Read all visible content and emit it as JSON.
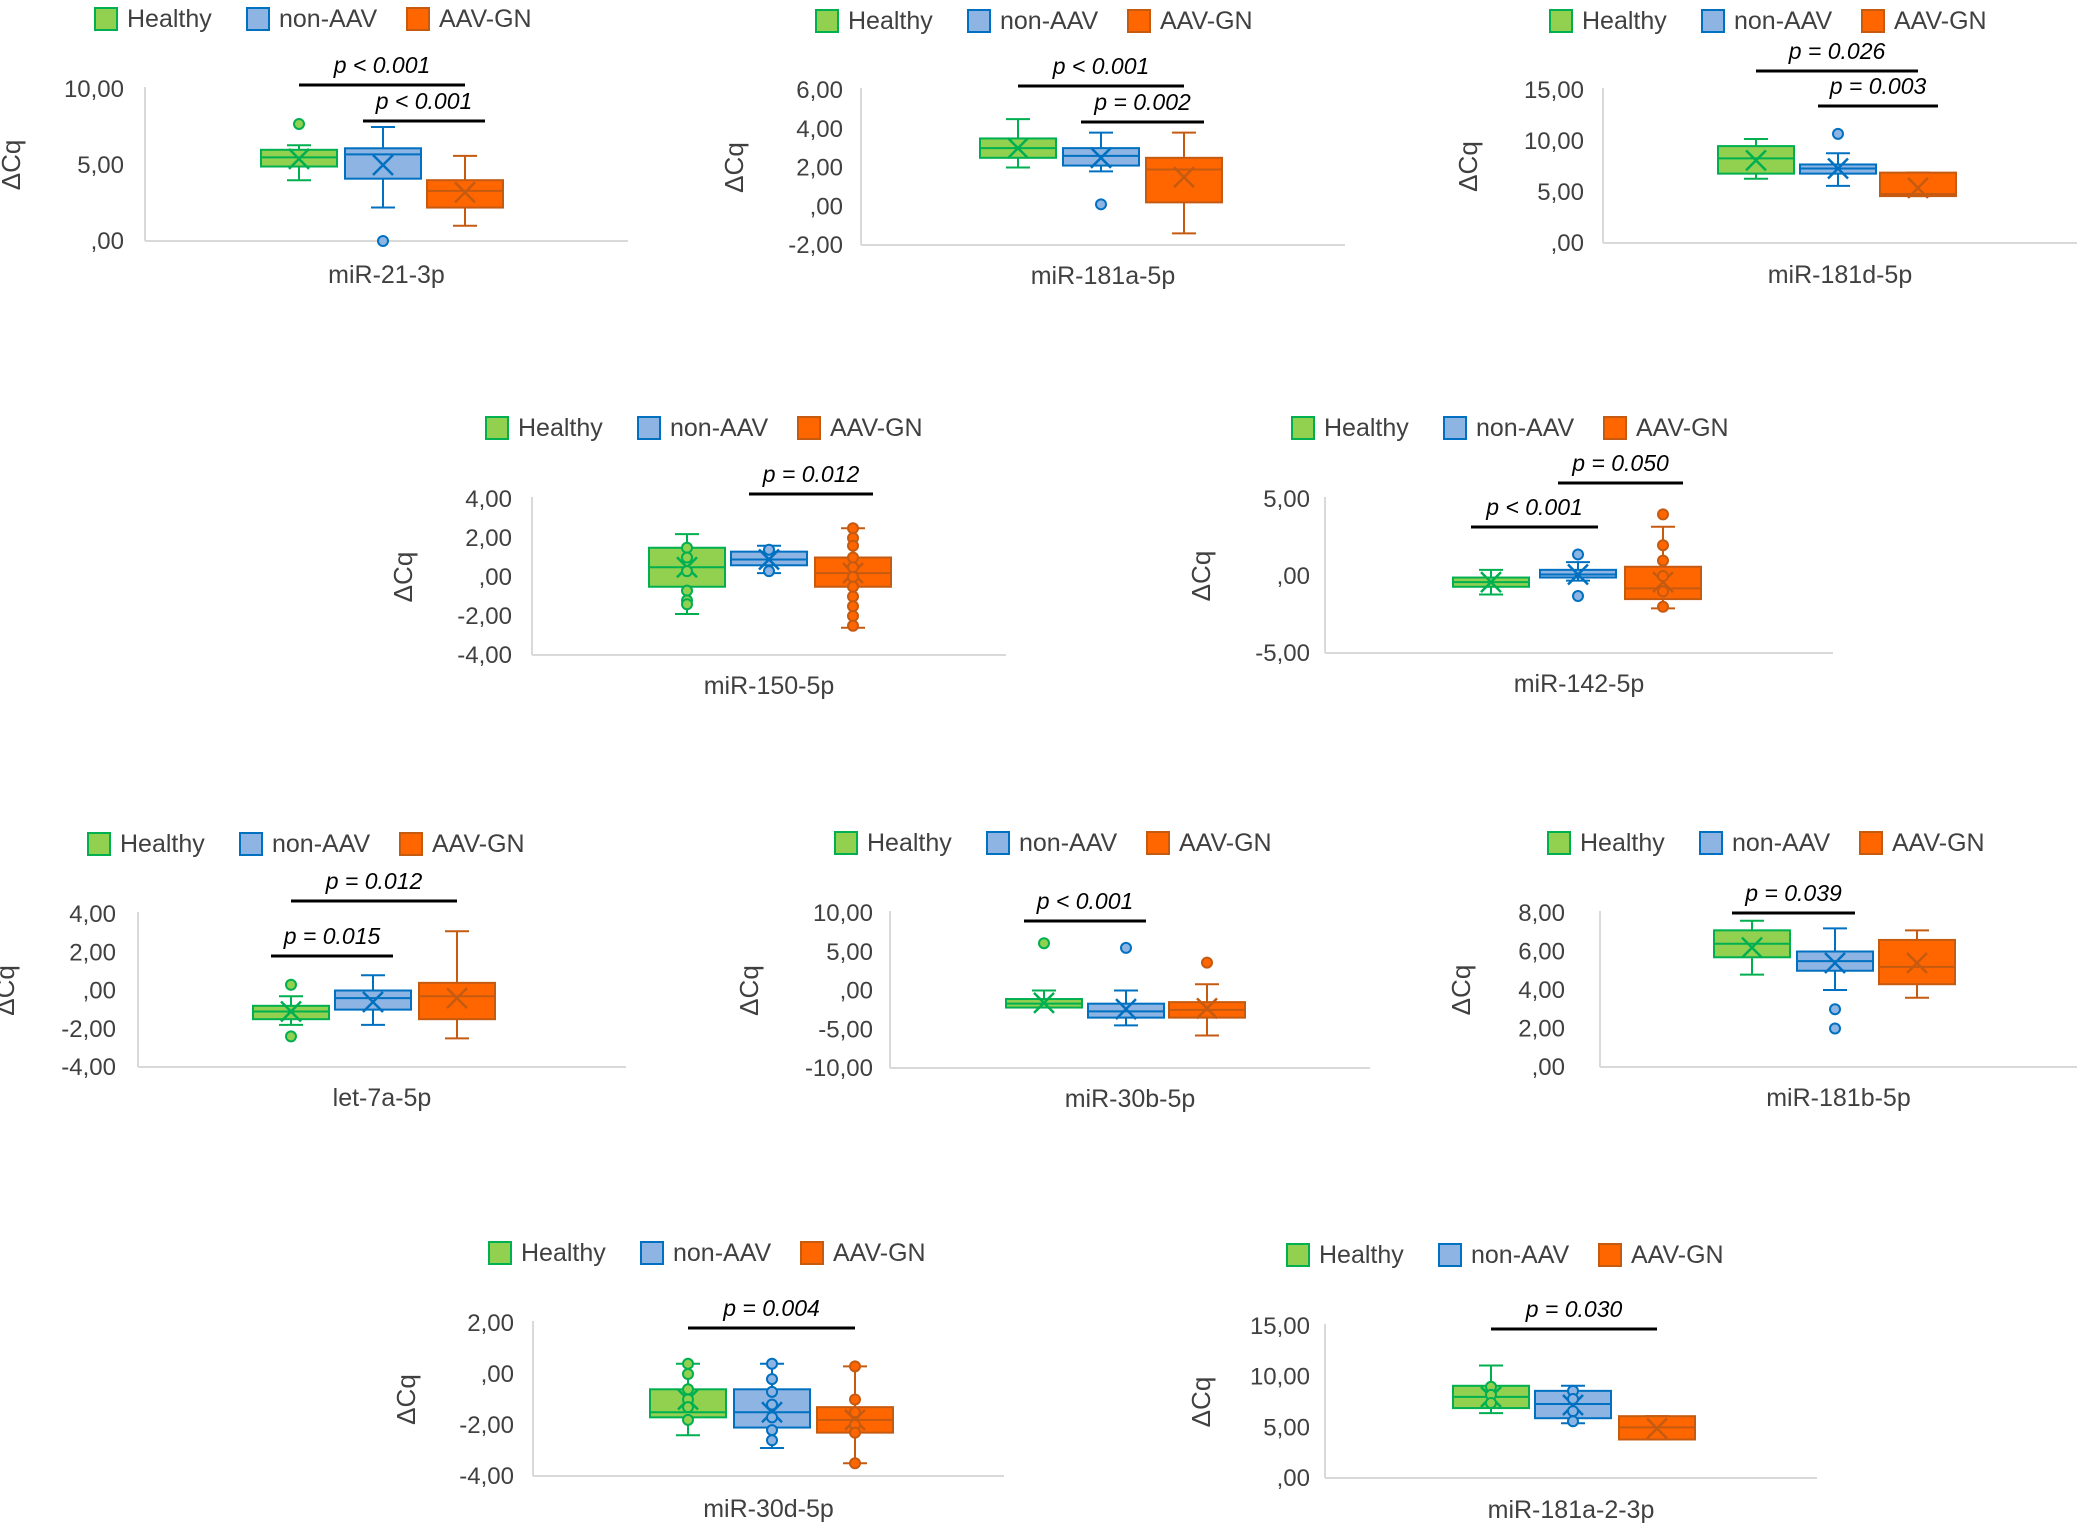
{
  "figure": {
    "groups": [
      "Healthy",
      "non-AAV",
      "AAV-GN"
    ],
    "group_colors": [
      "#92D050",
      "#8EB4E3",
      "#FF6600"
    ],
    "group_edge_colors": [
      "#00B050",
      "#0070C0",
      "#C55A11"
    ],
    "y_axis_label": "ΔCq"
  },
  "chart_data": [
    {
      "type": "box",
      "title": "miR-21-3p",
      "ylabel": "ΔCq",
      "legend": "top",
      "yticks": [
        0,
        5,
        10
      ],
      "ytick_labels": [
        ",00",
        "5,00",
        "10,00"
      ],
      "ylim": [
        0,
        10
      ],
      "boxes": [
        {
          "group": "Healthy",
          "min": 4,
          "q1": 4.9,
          "median": 5.5,
          "q3": 6.0,
          "max": 6.3,
          "mean": 5.4,
          "outliers": [
            7.7
          ]
        },
        {
          "group": "non-AAV",
          "min": 2.2,
          "q1": 4.1,
          "median": 5.7,
          "q3": 6.1,
          "max": 7.5,
          "mean": 5.0,
          "outliers": [
            0.0
          ]
        },
        {
          "group": "AAV-GN",
          "min": 1.0,
          "q1": 2.2,
          "median": 3.3,
          "q3": 4.0,
          "max": 5.6,
          "mean": 3.2,
          "outliers": []
        }
      ],
      "significance": [
        {
          "from": 0,
          "to": 2,
          "label": "p < 0.001",
          "level": 0
        },
        {
          "from": 1,
          "to": 2,
          "label": "p < 0.001",
          "level": 1
        }
      ]
    },
    {
      "type": "box",
      "title": "miR-181a-5p",
      "ylabel": "ΔCq",
      "legend": "top",
      "yticks": [
        -2,
        0,
        2,
        4,
        6
      ],
      "ytick_labels": [
        "-2,00",
        ",00",
        "2,00",
        "4,00",
        "6,00"
      ],
      "ylim": [
        -2,
        6
      ],
      "boxes": [
        {
          "group": "Healthy",
          "min": 2.0,
          "q1": 2.5,
          "median": 3.0,
          "q3": 3.5,
          "max": 4.5,
          "mean": 3.0,
          "outliers": []
        },
        {
          "group": "non-AAV",
          "min": 1.8,
          "q1": 2.1,
          "median": 2.6,
          "q3": 3.0,
          "max": 3.8,
          "mean": 2.5,
          "outliers": [
            0.1
          ]
        },
        {
          "group": "AAV-GN",
          "min": -1.4,
          "q1": 0.2,
          "median": 1.9,
          "q3": 2.5,
          "max": 3.8,
          "mean": 1.5,
          "outliers": []
        }
      ],
      "significance": [
        {
          "from": 0,
          "to": 2,
          "label": "p < 0.001",
          "level": 0
        },
        {
          "from": 1,
          "to": 2,
          "label": "p = 0.002",
          "level": 1
        }
      ]
    },
    {
      "type": "box",
      "title": "miR-181d-5p",
      "ylabel": "ΔCq",
      "legend": "top",
      "yticks": [
        0,
        5,
        10,
        15
      ],
      "ytick_labels": [
        ",00",
        "5,00",
        "10,00",
        "15,00"
      ],
      "ylim": [
        0,
        15
      ],
      "boxes": [
        {
          "group": "Healthy",
          "min": 6.3,
          "q1": 6.8,
          "median": 8.3,
          "q3": 9.5,
          "max": 10.2,
          "mean": 8.1,
          "outliers": []
        },
        {
          "group": "non-AAV",
          "min": 5.6,
          "q1": 6.8,
          "median": 7.3,
          "q3": 7.7,
          "max": 8.8,
          "mean": 7.3,
          "outliers": [
            10.7
          ]
        },
        {
          "group": "AAV-GN",
          "min": 4.6,
          "q1": 4.6,
          "median": 4.8,
          "q3": 6.9,
          "max": 6.9,
          "mean": 5.4,
          "outliers": []
        }
      ],
      "significance": [
        {
          "from": 0,
          "to": 2,
          "label": "p = 0.026",
          "level": 0
        },
        {
          "from": 1,
          "to": 2,
          "label": "p = 0.003",
          "level": 1
        }
      ]
    },
    {
      "type": "box",
      "title": "miR-150-5p",
      "ylabel": "ΔCq",
      "legend": "top",
      "yticks": [
        -4,
        -2,
        0,
        2,
        4
      ],
      "ytick_labels": [
        "-4,00",
        "-2,00",
        ",00",
        "2,00",
        "4,00"
      ],
      "ylim": [
        -4,
        4
      ],
      "boxes": [
        {
          "group": "Healthy",
          "min": -1.9,
          "q1": -0.5,
          "median": 0.5,
          "q3": 1.5,
          "max": 2.2,
          "mean": 0.5,
          "outliers": [
            1.5,
            1.0,
            0.3,
            -0.7,
            -1.2,
            -1.4
          ]
        },
        {
          "group": "non-AAV",
          "min": 0.2,
          "q1": 0.6,
          "median": 0.9,
          "q3": 1.3,
          "max": 1.6,
          "mean": 0.9,
          "outliers": [
            1.4,
            0.3
          ]
        },
        {
          "group": "AAV-GN",
          "min": -2.6,
          "q1": -0.5,
          "median": 0.2,
          "q3": 1.0,
          "max": 2.5,
          "mean": 0.2,
          "outliers": [
            2.5,
            2.0,
            1.6,
            1.0,
            0.5,
            0.0,
            -0.5,
            -1.0,
            -1.5,
            -2.0,
            -2.5
          ]
        }
      ],
      "significance": [
        {
          "from": 1,
          "to": 2,
          "label": "p = 0.012",
          "level": 0
        }
      ]
    },
    {
      "type": "box",
      "title": "miR-142-5p",
      "ylabel": "ΔCq",
      "legend": "top",
      "yticks": [
        -5,
        0,
        5
      ],
      "ytick_labels": [
        "-5,00",
        ",00",
        "5,00"
      ],
      "ylim": [
        -5,
        5
      ],
      "boxes": [
        {
          "group": "Healthy",
          "min": -1.2,
          "q1": -0.7,
          "median": -0.4,
          "q3": -0.1,
          "max": 0.4,
          "mean": -0.4,
          "outliers": []
        },
        {
          "group": "non-AAV",
          "min": -0.3,
          "q1": -0.1,
          "median": 0.1,
          "q3": 0.4,
          "max": 0.9,
          "mean": 0.1,
          "outliers": [
            1.4,
            -1.3
          ]
        },
        {
          "group": "AAV-GN",
          "min": -2.1,
          "q1": -1.5,
          "median": -0.8,
          "q3": 0.6,
          "max": 3.2,
          "mean": -0.4,
          "outliers": [
            4.0,
            2.0,
            1.0,
            0.0,
            -1.0,
            -2.0
          ]
        }
      ],
      "significance": [
        {
          "from": 0,
          "to": 1,
          "label": "p < 0.001",
          "level": 0
        },
        {
          "from": 1,
          "to": 2,
          "label": "p = 0.050",
          "level": 1
        }
      ]
    },
    {
      "type": "box",
      "title": "let-7a-5p",
      "ylabel": "ΔCq",
      "legend": "top",
      "yticks": [
        -4,
        -2,
        0,
        2,
        4
      ],
      "ytick_labels": [
        "-4,00",
        "-2,00",
        ",00",
        "2,00",
        "4,00"
      ],
      "ylim": [
        -4,
        4
      ],
      "boxes": [
        {
          "group": "Healthy",
          "min": -1.8,
          "q1": -1.5,
          "median": -1.1,
          "q3": -0.8,
          "max": -0.3,
          "mean": -1.1,
          "outliers": [
            0.3,
            -2.4
          ]
        },
        {
          "group": "non-AAV",
          "min": -1.8,
          "q1": -1.0,
          "median": -0.4,
          "q3": 0.0,
          "max": 0.8,
          "mean": -0.6,
          "outliers": []
        },
        {
          "group": "AAV-GN",
          "min": -2.5,
          "q1": -1.5,
          "median": -0.3,
          "q3": 0.4,
          "max": 3.1,
          "mean": -0.4,
          "outliers": []
        }
      ],
      "significance": [
        {
          "from": 0,
          "to": 2,
          "label": "p = 0.012",
          "level": 1
        },
        {
          "from": 0,
          "to": 1,
          "label": "p = 0.015",
          "level": 0
        }
      ]
    },
    {
      "type": "box",
      "title": "miR-30b-5p",
      "ylabel": "ΔCq",
      "legend": "top",
      "yticks": [
        -10,
        -5,
        0,
        5,
        10
      ],
      "ytick_labels": [
        "-10,00",
        "-5,00",
        ",00",
        "5,00",
        "10,00"
      ],
      "ylim": [
        -10,
        10
      ],
      "boxes": [
        {
          "group": "Healthy",
          "min": -2.2,
          "q1": -2.2,
          "median": -1.7,
          "q3": -1.1,
          "max": 0.0,
          "mean": -1.6,
          "outliers": [
            6.1
          ]
        },
        {
          "group": "non-AAV",
          "min": -4.5,
          "q1": -3.5,
          "median": -2.7,
          "q3": -1.7,
          "max": 0.0,
          "mean": -2.4,
          "outliers": [
            5.5
          ]
        },
        {
          "group": "AAV-GN",
          "min": -5.8,
          "q1": -3.5,
          "median": -2.5,
          "q3": -1.5,
          "max": 0.8,
          "mean": -2.3,
          "outliers": [
            3.6
          ]
        }
      ],
      "significance": [
        {
          "from": 0,
          "to": 1,
          "label": "p < 0.001",
          "level": 0
        }
      ]
    },
    {
      "type": "box",
      "title": "miR-181b-5p",
      "ylabel": "ΔCq",
      "legend": "top",
      "yticks": [
        0,
        2,
        4,
        6,
        8
      ],
      "ytick_labels": [
        ",00",
        "2,00",
        "4,00",
        "6,00",
        "8,00"
      ],
      "ylim": [
        0,
        8
      ],
      "boxes": [
        {
          "group": "Healthy",
          "min": 4.8,
          "q1": 5.7,
          "median": 6.4,
          "q3": 7.1,
          "max": 7.6,
          "mean": 6.2,
          "outliers": []
        },
        {
          "group": "non-AAV",
          "min": 4.0,
          "q1": 5.0,
          "median": 5.5,
          "q3": 6.0,
          "max": 7.2,
          "mean": 5.4,
          "outliers": [
            3.0,
            2.0
          ]
        },
        {
          "group": "AAV-GN",
          "min": 3.6,
          "q1": 4.3,
          "median": 5.2,
          "q3": 6.6,
          "max": 7.1,
          "mean": 5.4,
          "outliers": []
        }
      ],
      "significance": [
        {
          "from": 0,
          "to": 1,
          "label": "p = 0.039",
          "level": 0
        }
      ]
    },
    {
      "type": "box",
      "title": "miR-30d-5p",
      "ylabel": "ΔCq",
      "legend": "top",
      "yticks": [
        -4,
        -2,
        0,
        2
      ],
      "ytick_labels": [
        "-4,00",
        "-2,00",
        ",00",
        "2,00"
      ],
      "ylim": [
        -4,
        2
      ],
      "boxes": [
        {
          "group": "Healthy",
          "min": -2.4,
          "q1": -1.7,
          "median": -1.5,
          "q3": -0.6,
          "max": 0.4,
          "mean": -1.0,
          "outliers": [
            0.4,
            0.0,
            -0.6,
            -1.0,
            -1.3,
            -1.8
          ]
        },
        {
          "group": "non-AAV",
          "min": -2.9,
          "q1": -2.1,
          "median": -1.5,
          "q3": -0.6,
          "max": 0.4,
          "mean": -1.5,
          "outliers": [
            0.4,
            -0.2,
            -0.7,
            -1.2,
            -1.7,
            -2.2,
            -2.6
          ]
        },
        {
          "group": "AAV-GN",
          "min": -3.5,
          "q1": -2.3,
          "median": -1.8,
          "q3": -1.3,
          "max": 0.3,
          "mean": -1.8,
          "outliers": [
            0.3,
            -1.0,
            -1.5,
            -2.0,
            -2.3,
            -3.5
          ]
        }
      ],
      "significance": [
        {
          "from": 0,
          "to": 2,
          "label": "p = 0.004",
          "level": 0
        }
      ]
    },
    {
      "type": "box",
      "title": "miR-181a-2-3p",
      "ylabel": "ΔCq",
      "legend": "top",
      "yticks": [
        0,
        5,
        10,
        15
      ],
      "ytick_labels": [
        ",00",
        "5,00",
        "10,00",
        "15,00"
      ],
      "ylim": [
        0,
        15
      ],
      "boxes": [
        {
          "group": "Healthy",
          "min": 6.4,
          "q1": 6.9,
          "median": 8.0,
          "q3": 9.1,
          "max": 11.1,
          "mean": 8.0,
          "outliers": [
            9.0,
            8.2,
            7.4
          ]
        },
        {
          "group": "non-AAV",
          "min": 5.4,
          "q1": 5.9,
          "median": 7.3,
          "q3": 8.6,
          "max": 9.1,
          "mean": 7.2,
          "outliers": [
            8.6,
            7.8,
            6.6,
            5.6
          ]
        },
        {
          "group": "AAV-GN",
          "min": 3.8,
          "q1": 3.8,
          "median": 5.0,
          "q3": 6.1,
          "max": 6.1,
          "mean": 4.9,
          "outliers": []
        }
      ],
      "significance": [
        {
          "from": 0,
          "to": 2,
          "label": "p = 0.030",
          "level": 0
        }
      ]
    }
  ]
}
